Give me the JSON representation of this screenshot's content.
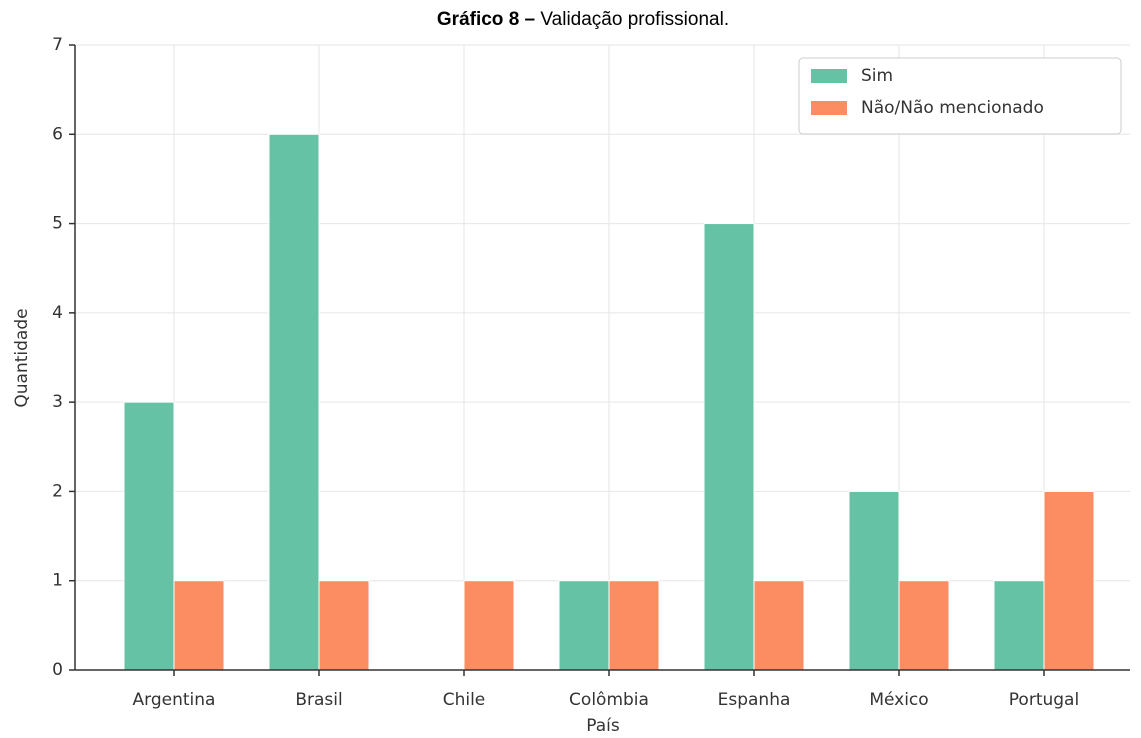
{
  "chart_data": {
    "type": "bar",
    "title": [
      "Gráfico 8 –",
      "Validação profissional."
    ],
    "xlabel": "País",
    "ylabel": "Quantidade",
    "categories": [
      "Argentina",
      "Brasil",
      "Chile",
      "Colômbia",
      "Espanha",
      "México",
      "Portugal"
    ],
    "series": [
      {
        "name": "Sim",
        "color": "#66c2a5",
        "values": [
          3,
          6,
          0,
          1,
          5,
          2,
          1
        ]
      },
      {
        "name": "Não/Não mencionado",
        "color": "#fc8d62",
        "values": [
          1,
          1,
          1,
          1,
          1,
          1,
          2
        ]
      }
    ],
    "ylim": [
      0,
      7
    ],
    "yticks": [
      0,
      1,
      2,
      3,
      4,
      5,
      6,
      7
    ],
    "grid": true,
    "legend": "upper right"
  }
}
